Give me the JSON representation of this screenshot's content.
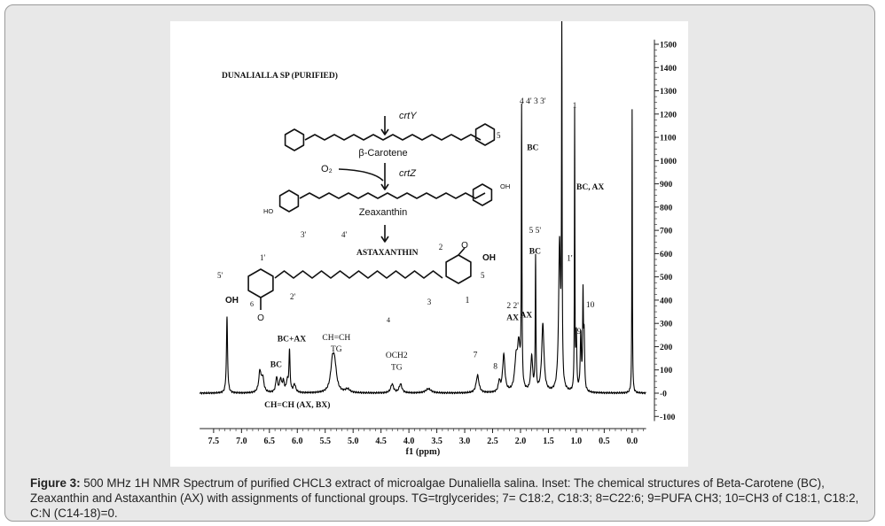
{
  "figure": {
    "caption_label": "Figure 3:",
    "caption_text": "500 MHz 1H NMR Spectrum of purified CHCL3 extract of microalgae Dunaliella salina. Inset: The chemical structures of Beta-Carotene (BC), Zeaxanthin and Astaxanthin (AX) with assignments of functional groups. TG=trglycerides; 7= C18:2, C18:3; 8=C22:6; 9=PUFA CH3; 10=CH3 of C18:1, C18:2, C:N (C14-18)=0."
  },
  "chart_data": {
    "type": "line",
    "title": "DUNALIALLA SP (PURIFIED)",
    "xlabel": "f1 (ppm)",
    "ylabel": "",
    "xlim": [
      7.8,
      -0.4
    ],
    "ylim": [
      -150,
      1520
    ],
    "x_reversed": true,
    "x_ticks": [
      "7.5",
      "7.0",
      "6.5",
      "6.0",
      "5.5",
      "5.0",
      "4.5",
      "4.0",
      "3.5",
      "3.0",
      "2.5",
      "2.0",
      "1.5",
      "1.0",
      "0.5",
      "0.0"
    ],
    "x_tick_values": [
      7.5,
      7.0,
      6.5,
      6.0,
      5.5,
      5.0,
      4.5,
      4.0,
      3.5,
      3.0,
      2.5,
      2.0,
      1.5,
      1.0,
      0.5,
      0.0
    ],
    "y_ticks": [
      "-100",
      "-0",
      "100",
      "200",
      "300",
      "400",
      "500",
      "600",
      "700",
      "800",
      "900",
      "1000",
      "1100",
      "1200",
      "1300",
      "1400",
      "1500"
    ],
    "y_tick_values": [
      -100,
      0,
      100,
      200,
      300,
      400,
      500,
      600,
      700,
      800,
      900,
      1000,
      1100,
      1200,
      1300,
      1400,
      1500
    ],
    "y_axis_side": "right",
    "grid": false,
    "peaks": [
      {
        "ppm": 7.26,
        "height": 325,
        "width": 0.012
      },
      {
        "ppm": 6.67,
        "height": 90,
        "width": 0.025
      },
      {
        "ppm": 6.62,
        "height": 60,
        "width": 0.025
      },
      {
        "ppm": 6.37,
        "height": 65,
        "width": 0.02
      },
      {
        "ppm": 6.3,
        "height": 55,
        "width": 0.02
      },
      {
        "ppm": 6.25,
        "height": 45,
        "width": 0.02
      },
      {
        "ppm": 6.18,
        "height": 45,
        "width": 0.02
      },
      {
        "ppm": 6.14,
        "height": 175,
        "width": 0.012
      },
      {
        "ppm": 6.05,
        "height": 35,
        "width": 0.025
      },
      {
        "ppm": 5.37,
        "height": 115,
        "width": 0.04
      },
      {
        "ppm": 5.33,
        "height": 100,
        "width": 0.04
      },
      {
        "ppm": 5.1,
        "height": 15,
        "width": 0.05
      },
      {
        "ppm": 4.3,
        "height": 38,
        "width": 0.03
      },
      {
        "ppm": 4.15,
        "height": 38,
        "width": 0.03
      },
      {
        "ppm": 3.65,
        "height": 18,
        "width": 0.06
      },
      {
        "ppm": 2.77,
        "height": 75,
        "width": 0.03
      },
      {
        "ppm": 2.38,
        "height": 45,
        "width": 0.02
      },
      {
        "ppm": 2.3,
        "height": 160,
        "width": 0.025
      },
      {
        "ppm": 2.08,
        "height": 120,
        "width": 0.03
      },
      {
        "ppm": 2.03,
        "height": 190,
        "width": 0.03
      },
      {
        "ppm": 1.98,
        "height": 1180,
        "width": 0.006
      },
      {
        "ppm": 1.8,
        "height": 150,
        "width": 0.02
      },
      {
        "ppm": 1.73,
        "height": 575,
        "width": 0.007
      },
      {
        "ppm": 1.6,
        "height": 290,
        "width": 0.025
      },
      {
        "ppm": 1.3,
        "height": 640,
        "width": 0.02
      },
      {
        "ppm": 1.26,
        "height": 1505,
        "width": 0.006
      },
      {
        "ppm": 1.03,
        "height": 1195,
        "width": 0.005
      },
      {
        "ppm": 1.0,
        "height": 240,
        "width": 0.01
      },
      {
        "ppm": 0.92,
        "height": 240,
        "width": 0.012
      },
      {
        "ppm": 0.88,
        "height": 395,
        "width": 0.008
      },
      {
        "ppm": 0.86,
        "height": 230,
        "width": 0.01
      },
      {
        "ppm": 0.0,
        "height": 1220,
        "width": 0.005
      }
    ],
    "annotations": [
      {
        "text": "4 4' 3 3'",
        "ppm": 1.78,
        "level": 1245
      },
      {
        "text": "BC",
        "ppm": 1.78,
        "level": 1045
      },
      {
        "text": "1",
        "ppm": 1.03,
        "level": 1225
      },
      {
        "text": "BC, AX",
        "ppm": 0.75,
        "level": 875
      },
      {
        "text": "5 5'",
        "ppm": 1.74,
        "level": 690
      },
      {
        "text": "BC",
        "ppm": 1.74,
        "level": 600
      },
      {
        "text": "1'",
        "ppm": 1.12,
        "level": 570
      },
      {
        "text": "10",
        "ppm": 0.75,
        "level": 370
      },
      {
        "text": "2 2'",
        "ppm": 2.14,
        "level": 365
      },
      {
        "text": "AX",
        "ppm": 2.14,
        "level": 315
      },
      {
        "text": "AX",
        "ppm": 1.9,
        "level": 325
      },
      {
        "text": "9",
        "ppm": 0.95,
        "level": 255
      },
      {
        "text": "BC+AX",
        "ppm": 6.1,
        "level": 222
      },
      {
        "text": "CH=CH",
        "ppm": 5.3,
        "level": 228
      },
      {
        "text": "TG",
        "ppm": 5.3,
        "level": 178
      },
      {
        "text": "BC",
        "ppm": 6.38,
        "level": 112
      },
      {
        "text": "OCH2",
        "ppm": 4.22,
        "level": 152
      },
      {
        "text": "TG",
        "ppm": 4.22,
        "level": 100
      },
      {
        "text": "7",
        "ppm": 2.81,
        "level": 155
      },
      {
        "text": "8",
        "ppm": 2.45,
        "level": 105
      },
      {
        "text": "CH=CH (AX, BX)",
        "ppm": 6.0,
        "level": -60
      }
    ],
    "inset": {
      "labels": {
        "crtY": "crtY",
        "beta_carotene": "β-Carotene",
        "o2": "O₂",
        "crtZ": "crtZ",
        "zeaxanthin": "Zeaxanthin",
        "oh_label": "OH",
        "ho_label": "HO",
        "astaxanthin": "ASTAXANTHIN",
        "n5": "5",
        "n3p": "3'",
        "n4p": "4'",
        "n2": "2",
        "n1p": "1'",
        "n5p": "5'",
        "n6": "6",
        "n2p": "2'",
        "n3": "3",
        "n1": "1",
        "n4": "4",
        "oh_left": "OH",
        "oh_right": "OH",
        "o_top": "O",
        "o_bottom": "O",
        "n5b": "5"
      }
    }
  }
}
